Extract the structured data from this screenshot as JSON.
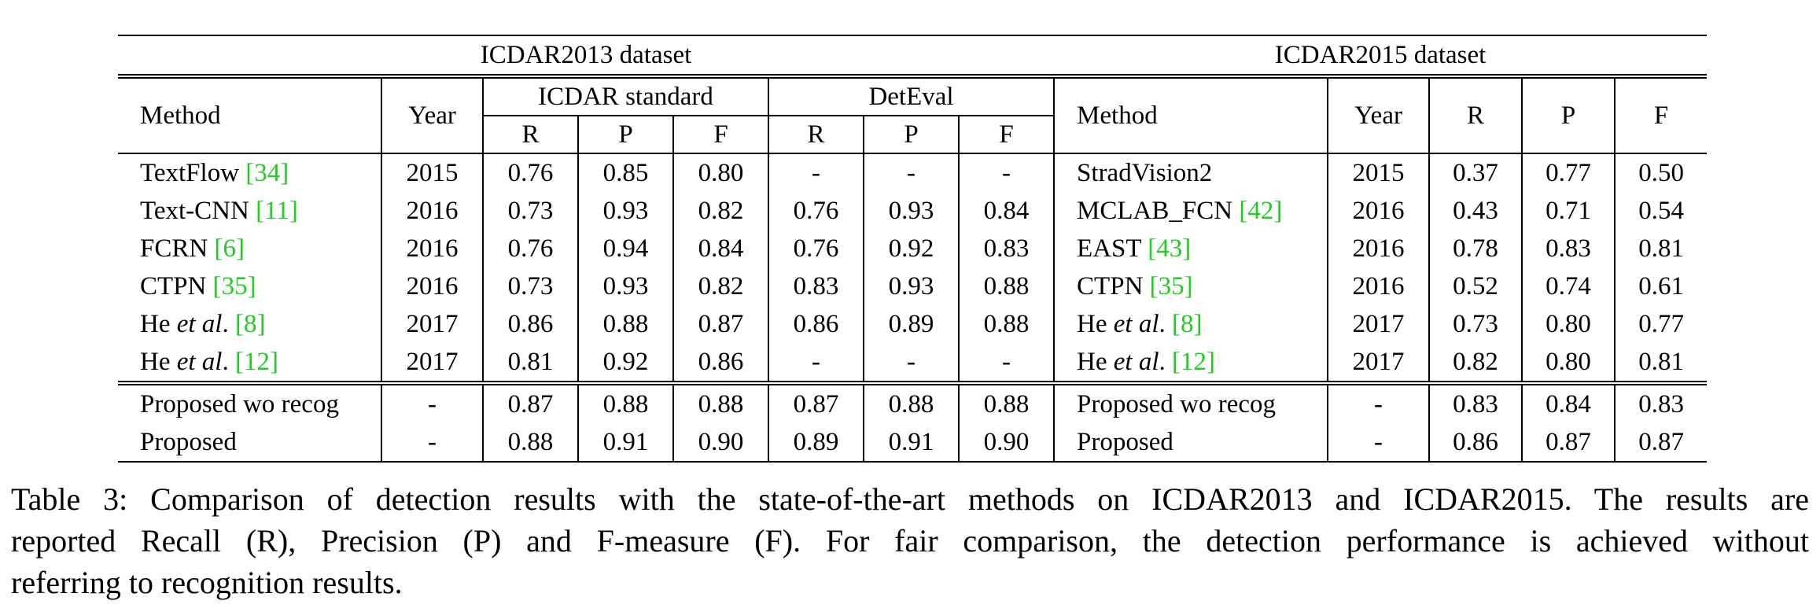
{
  "datasets": {
    "left": "ICDAR2013 dataset",
    "right": "ICDAR2015 dataset"
  },
  "headers": {
    "method": "Method",
    "year": "Year",
    "icdar_standard": "ICDAR standard",
    "deteval": "DetEval",
    "r": "R",
    "p": "P",
    "f": "F"
  },
  "rows": [
    {
      "m13": "TextFlow ",
      "m13_cite": "[34]",
      "m13_italic": "",
      "y13": "2015",
      "ir": "0.76",
      "ip": "0.85",
      "if": "0.80",
      "dr": "-",
      "dp": "-",
      "df": "-",
      "m15": "StradVision2",
      "m15_cite": "",
      "m15_italic": "",
      "y15": "2015",
      "r15": "0.37",
      "p15": "0.77",
      "f15": "0.50"
    },
    {
      "m13": "Text-CNN ",
      "m13_cite": "[11]",
      "m13_italic": "",
      "y13": "2016",
      "ir": "0.73",
      "ip": "0.93",
      "if": "0.82",
      "dr": "0.76",
      "dp": "0.93",
      "df": "0.84",
      "m15": "MCLAB_FCN ",
      "m15_cite": "[42]",
      "m15_italic": "",
      "y15": "2016",
      "r15": "0.43",
      "p15": "0.71",
      "f15": "0.54"
    },
    {
      "m13": "FCRN ",
      "m13_cite": "[6]",
      "m13_italic": "",
      "y13": "2016",
      "ir": "0.76",
      "ip": "0.94",
      "if": "0.84",
      "dr": "0.76",
      "dp": "0.92",
      "df": "0.83",
      "m15": "EAST ",
      "m15_cite": "[43]",
      "m15_italic": "",
      "y15": "2016",
      "r15": "0.78",
      "p15": "0.83",
      "f15": "0.81"
    },
    {
      "m13": "CTPN ",
      "m13_cite": "[35]",
      "m13_italic": "",
      "y13": "2016",
      "ir": "0.73",
      "ip": "0.93",
      "if": "0.82",
      "dr": "0.83",
      "dp": "0.93",
      "df": "0.88",
      "m15": "CTPN ",
      "m15_cite": "[35]",
      "m15_italic": "",
      "y15": "2016",
      "r15": "0.52",
      "p15": "0.74",
      "f15": "0.61"
    },
    {
      "m13": "He ",
      "m13_italic": "et al",
      "m13_after": ". ",
      "m13_cite": "[8]",
      "y13": "2017",
      "ir": "0.86",
      "ip": "0.88",
      "if": "0.87",
      "dr": "0.86",
      "dp": "0.89",
      "df": "0.88",
      "m15": "He ",
      "m15_italic": "et al",
      "m15_after": ". ",
      "m15_cite": "[8]",
      "y15": "2017",
      "r15": "0.73",
      "p15": "0.80",
      "f15": "0.77"
    },
    {
      "m13": "He ",
      "m13_italic": "et al",
      "m13_after": ". ",
      "m13_cite": "[12]",
      "y13": "2017",
      "ir": "0.81",
      "ip": "0.92",
      "if": "0.86",
      "dr": "-",
      "dp": "-",
      "df": "-",
      "m15": "He ",
      "m15_italic": "et al",
      "m15_after": ". ",
      "m15_cite": "[12]",
      "y15": "2017",
      "r15": "0.82",
      "p15": "0.80",
      "f15": "0.81"
    }
  ],
  "proposed_rows": [
    {
      "m13": "Proposed wo recog",
      "y13": "-",
      "ir": "0.87",
      "ip": "0.88",
      "if": "0.88",
      "dr": "0.87",
      "dp": "0.88",
      "df": "0.88",
      "m15": "Proposed wo recog",
      "y15": "-",
      "r15": "0.83",
      "p15": "0.84",
      "f15": "0.83"
    },
    {
      "m13": "Proposed",
      "y13": "-",
      "ir": "0.88",
      "ip": "0.91",
      "if": "0.90",
      "dr": "0.89",
      "dp": "0.91",
      "df": "0.90",
      "m15": "Proposed",
      "y15": "-",
      "r15": "0.86",
      "p15": "0.87",
      "f15": "0.87"
    }
  ],
  "caption": {
    "line1": "Table 3: Comparison of detection results with the state-of-the-art methods on ICDAR2013 and ICDAR2015. The results are",
    "line2": "reported Recall (R), Precision (P) and F-measure (F). For fair comparison, the detection performance is achieved without",
    "line3": "referring to recognition results."
  },
  "colors": {
    "citation": "#22cc22"
  }
}
